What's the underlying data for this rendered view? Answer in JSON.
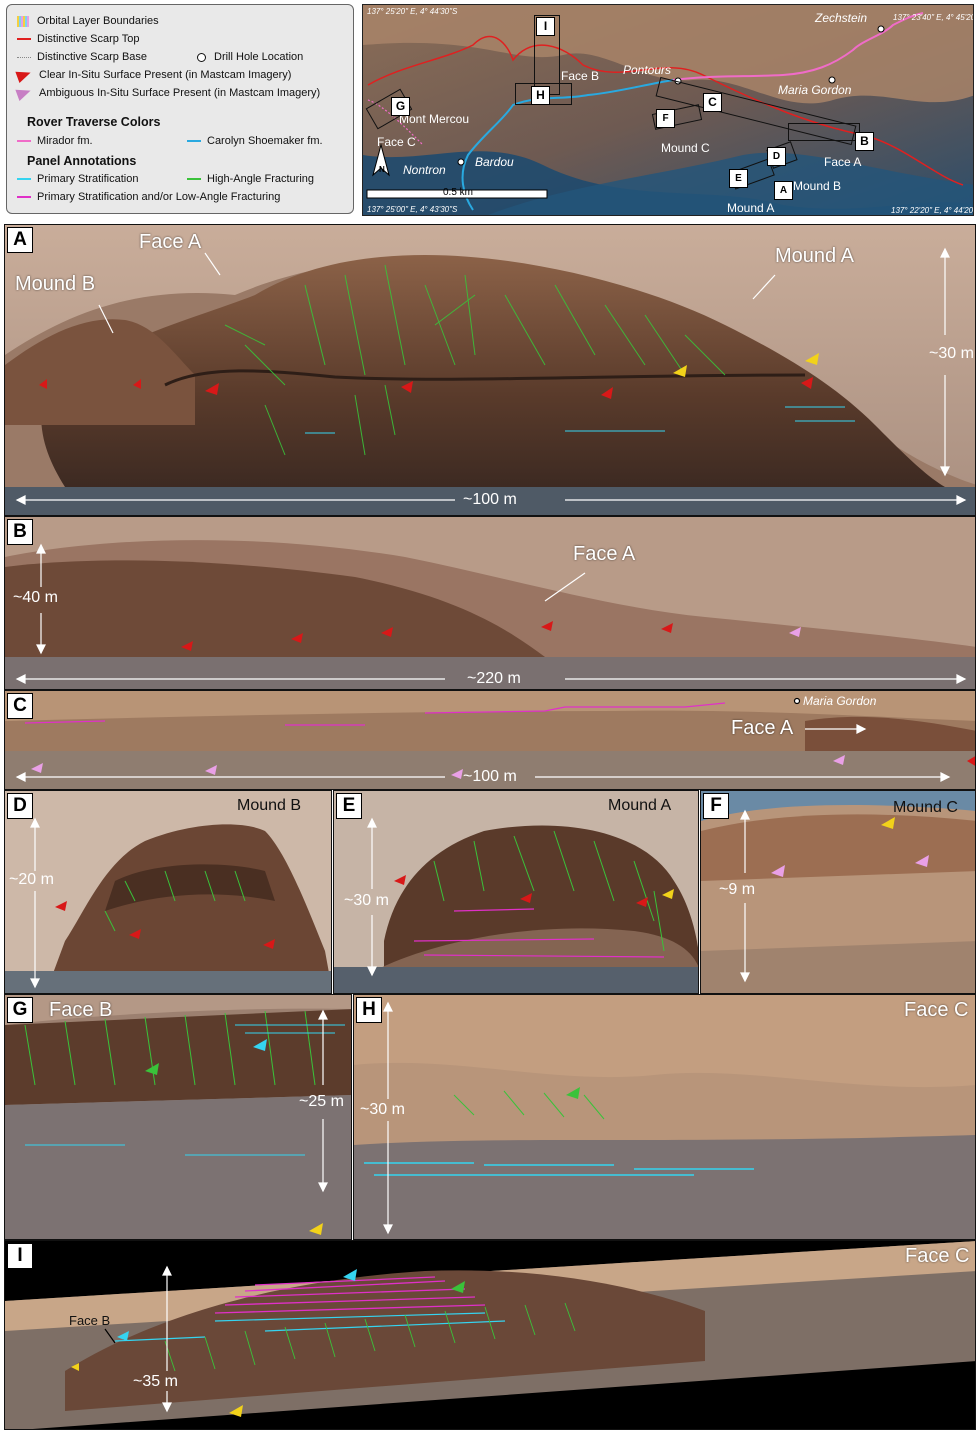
{
  "legend": {
    "orbital_layer_boundaries": "Orbital Layer Boundaries",
    "distinctive_scarp_top": "Distinctive Scarp Top",
    "distinctive_scarp_base": "Distinctive Scarp Base",
    "drill_hole_location": "Drill Hole Location",
    "clear_in_situ": "Clear In-Situ Surface Present (in Mastcam Imagery)",
    "ambiguous_in_situ": "Ambiguous In-Situ Surface Present (in Mastcam Imagery)",
    "rover_traverse_colors": "Rover Traverse Colors",
    "mirador": "Mirador fm.",
    "carolyn": "Carolyn Shoemaker fm.",
    "panel_annotations": "Panel Annotations",
    "primary_strat": "Primary Stratification",
    "high_angle": "High-Angle Fracturing",
    "primary_low_angle": "Primary Stratification and/or Low-Angle Fracturing",
    "colors": {
      "scarp_top": "#e02020",
      "mirador": "#f06cc8",
      "carolyn": "#29a9e0",
      "primary_strat": "#35d4f0",
      "high_angle": "#3ac23a",
      "low_angle": "#e030c8",
      "red_arrow": "#d81818",
      "pink_arrow": "#e9a0e6",
      "yellow_arrow": "#f2d21a"
    }
  },
  "map": {
    "coord_tl": "137° 25'20\" E, 4° 44'30\"S",
    "coord_tr": "137° 23'40\" E, 4° 45'20\"",
    "coord_bl": "137° 25'00\" E, 4° 43'30\"S",
    "coord_br": "137° 22'20\" E, 4° 44'20\"",
    "scale": "0.5 km",
    "labels": {
      "zechstein": "Zechstein",
      "pontours": "Pontours",
      "maria_gordon": "Maria Gordon",
      "face_b": "Face B",
      "mont_mercou": "Mont Mercou",
      "face_c": "Face C",
      "nontron": "Nontron",
      "bardou": "Bardou",
      "mound_c": "Mound C",
      "face_a": "Face A",
      "mound_b": "Mound B",
      "mound_a": "Mound A",
      "north": "N"
    },
    "box_labels": [
      "I",
      "H",
      "G",
      "C",
      "B",
      "F",
      "D",
      "E",
      "A"
    ]
  },
  "panels": {
    "A": {
      "label": "A",
      "face_a": "Face A",
      "mound_b": "Mound B",
      "mound_a": "Mound A",
      "height": "~30 m",
      "width": "~100 m"
    },
    "B": {
      "label": "B",
      "face_a": "Face A",
      "height": "~40 m",
      "width": "~220 m"
    },
    "C": {
      "label": "C",
      "maria_gordon": "Maria Gordon",
      "face_a": "Face A",
      "width": "~100 m"
    },
    "D": {
      "label": "D",
      "title": "Mound B",
      "height": "~20 m"
    },
    "E": {
      "label": "E",
      "title": "Mound A",
      "height": "~30 m"
    },
    "F": {
      "label": "F",
      "title": "Mound C",
      "height": "~9 m"
    },
    "G": {
      "label": "G",
      "title": "Face B",
      "height": "~25 m"
    },
    "H": {
      "label": "H",
      "title": "Face C",
      "height": "~30 m"
    },
    "I": {
      "label": "I",
      "title": "Face C",
      "face_b": "Face B",
      "height": "~35 m"
    }
  }
}
